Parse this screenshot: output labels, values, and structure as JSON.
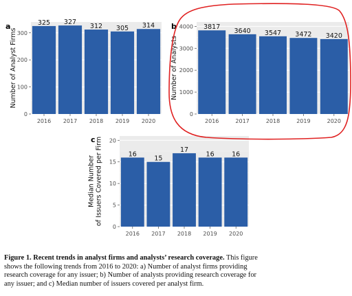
{
  "chart_data": [
    {
      "type": "bar",
      "panel_label": "a",
      "categories": [
        "2016",
        "2017",
        "2018",
        "2019",
        "2020"
      ],
      "values": [
        325,
        327,
        312,
        305,
        314
      ],
      "ylabel": "Number of Analyst Firms",
      "ylim": [
        0,
        340
      ],
      "yticks": [
        0,
        100,
        200,
        300
      ],
      "grid": true,
      "bar_color": "#2b5ea7"
    },
    {
      "type": "bar",
      "panel_label": "b",
      "categories": [
        "2016",
        "2017",
        "2018",
        "2019",
        "2020"
      ],
      "values": [
        3817,
        3640,
        3547,
        3472,
        3420
      ],
      "ylabel": "Number of Analysts",
      "ylim": [
        0,
        4200
      ],
      "yticks": [
        0,
        1000,
        2000,
        3000,
        4000
      ],
      "grid": true,
      "bar_color": "#2b5ea7",
      "annotation": "hand-drawn red circle around panel"
    },
    {
      "type": "bar",
      "panel_label": "c",
      "categories": [
        "2016",
        "2017",
        "2018",
        "2019",
        "2020"
      ],
      "values": [
        16,
        15,
        17,
        16,
        16
      ],
      "ylabel": "Median Number of Issuers Covered per Firm",
      "ylabel_lines": [
        "Median Number",
        "of Issuers Covered per Firm"
      ],
      "ylim": [
        0,
        21
      ],
      "yticks": [
        0,
        5,
        10,
        15,
        20
      ],
      "grid": true,
      "bar_color": "#2b5ea7"
    }
  ],
  "caption": {
    "bold": "Figure 1. Recent trends in analyst firms and analysts’ research coverage.",
    "lines": [
      " This figure",
      "shows the following trends from 2016 to 2020: a) Number of analyst firms providing",
      "research coverage for any issuer; b) Number of analysts providing research coverage for",
      "any issuer; and c) Median number of issuers covered per analyst firm."
    ]
  },
  "colors": {
    "bar": "#2b5ea7",
    "panel_background": "#ebebeb",
    "annotation": "#e02020"
  }
}
